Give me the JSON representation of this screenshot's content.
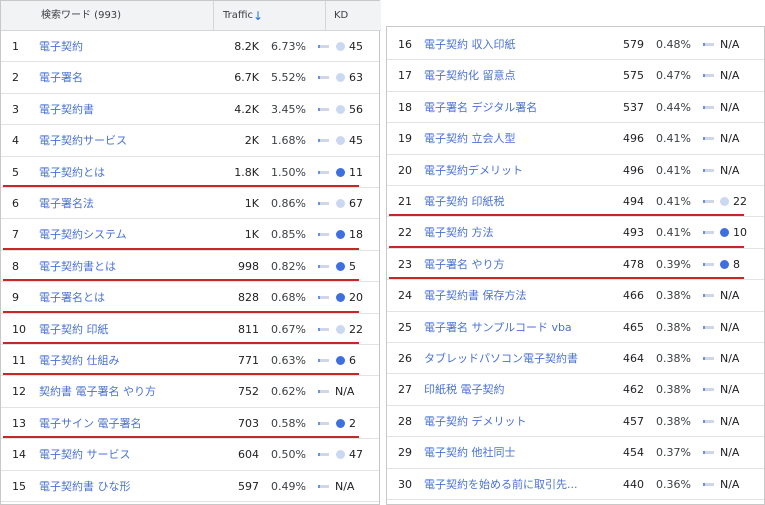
{
  "header": {
    "keyword_col": "検索ワード (993)",
    "traffic_col": "Traffic",
    "sort_icon": "arrow-down",
    "kd_col": "KD"
  },
  "colors": {
    "keyword_link": "#4a72d4",
    "kd_low": "#3e6fe0",
    "kd_high": "#cbd8f2",
    "underline": "#c62828"
  },
  "left_rows": [
    {
      "n": "1",
      "kw": "電子契約",
      "traffic": "8.2K",
      "pct": "6.73%",
      "kd": "45",
      "kd_level": "high",
      "underlined": false
    },
    {
      "n": "2",
      "kw": "電子署名",
      "traffic": "6.7K",
      "pct": "5.52%",
      "kd": "63",
      "kd_level": "high",
      "underlined": false
    },
    {
      "n": "3",
      "kw": "電子契約書",
      "traffic": "4.2K",
      "pct": "3.45%",
      "kd": "56",
      "kd_level": "high",
      "underlined": false
    },
    {
      "n": "4",
      "kw": "電子契約サービス",
      "traffic": "2K",
      "pct": "1.68%",
      "kd": "45",
      "kd_level": "high",
      "underlined": false
    },
    {
      "n": "5",
      "kw": "電子契約とは",
      "traffic": "1.8K",
      "pct": "1.50%",
      "kd": "11",
      "kd_level": "low",
      "underlined": true
    },
    {
      "n": "6",
      "kw": "電子署名法",
      "traffic": "1K",
      "pct": "0.86%",
      "kd": "67",
      "kd_level": "high",
      "underlined": false
    },
    {
      "n": "7",
      "kw": "電子契約システム",
      "traffic": "1K",
      "pct": "0.85%",
      "kd": "18",
      "kd_level": "low",
      "underlined": true
    },
    {
      "n": "8",
      "kw": "電子契約書とは",
      "traffic": "998",
      "pct": "0.82%",
      "kd": "5",
      "kd_level": "low",
      "underlined": true
    },
    {
      "n": "9",
      "kw": "電子署名とは",
      "traffic": "828",
      "pct": "0.68%",
      "kd": "20",
      "kd_level": "low",
      "underlined": true
    },
    {
      "n": "10",
      "kw": "電子契約 印紙",
      "traffic": "811",
      "pct": "0.67%",
      "kd": "22",
      "kd_level": "high",
      "underlined": true
    },
    {
      "n": "11",
      "kw": "電子契約 仕組み",
      "traffic": "771",
      "pct": "0.63%",
      "kd": "6",
      "kd_level": "low",
      "underlined": true
    },
    {
      "n": "12",
      "kw": "契約書 電子署名 やり方",
      "traffic": "752",
      "pct": "0.62%",
      "kd": "N/A",
      "kd_level": "none",
      "underlined": false
    },
    {
      "n": "13",
      "kw": "電子サイン 電子署名",
      "traffic": "703",
      "pct": "0.58%",
      "kd": "2",
      "kd_level": "low",
      "underlined": true
    },
    {
      "n": "14",
      "kw": "電子契約 サービス",
      "traffic": "604",
      "pct": "0.50%",
      "kd": "47",
      "kd_level": "high",
      "underlined": false
    },
    {
      "n": "15",
      "kw": "電子契約書 ひな形",
      "traffic": "597",
      "pct": "0.49%",
      "kd": "N/A",
      "kd_level": "none",
      "underlined": false
    }
  ],
  "right_rows": [
    {
      "n": "16",
      "kw": "電子契約 収入印紙",
      "traffic": "579",
      "pct": "0.48%",
      "kd": "N/A",
      "kd_level": "none",
      "underlined": false
    },
    {
      "n": "17",
      "kw": "電子契約化 留意点",
      "traffic": "575",
      "pct": "0.47%",
      "kd": "N/A",
      "kd_level": "none",
      "underlined": false
    },
    {
      "n": "18",
      "kw": "電子署名 デジタル署名",
      "traffic": "537",
      "pct": "0.44%",
      "kd": "N/A",
      "kd_level": "none",
      "underlined": false
    },
    {
      "n": "19",
      "kw": "電子契約 立会人型",
      "traffic": "496",
      "pct": "0.41%",
      "kd": "N/A",
      "kd_level": "none",
      "underlined": false
    },
    {
      "n": "20",
      "kw": "電子契約デメリット",
      "traffic": "496",
      "pct": "0.41%",
      "kd": "N/A",
      "kd_level": "none",
      "underlined": false
    },
    {
      "n": "21",
      "kw": "電子契約 印紙税",
      "traffic": "494",
      "pct": "0.41%",
      "kd": "22",
      "kd_level": "high",
      "underlined": true
    },
    {
      "n": "22",
      "kw": "電子契約 方法",
      "traffic": "493",
      "pct": "0.41%",
      "kd": "10",
      "kd_level": "low",
      "underlined": true
    },
    {
      "n": "23",
      "kw": "電子署名 やり方",
      "traffic": "478",
      "pct": "0.39%",
      "kd": "8",
      "kd_level": "low",
      "underlined": true
    },
    {
      "n": "24",
      "kw": "電子契約書 保存方法",
      "traffic": "466",
      "pct": "0.38%",
      "kd": "N/A",
      "kd_level": "none",
      "underlined": false
    },
    {
      "n": "25",
      "kw": "電子署名 サンプルコード vba",
      "traffic": "465",
      "pct": "0.38%",
      "kd": "N/A",
      "kd_level": "none",
      "underlined": false
    },
    {
      "n": "26",
      "kw": "タブレッドパソコン電子契約書",
      "traffic": "464",
      "pct": "0.38%",
      "kd": "N/A",
      "kd_level": "none",
      "underlined": false
    },
    {
      "n": "27",
      "kw": "印紙税 電子契約",
      "traffic": "462",
      "pct": "0.38%",
      "kd": "N/A",
      "kd_level": "none",
      "underlined": false
    },
    {
      "n": "28",
      "kw": "電子契約 デメリット",
      "traffic": "457",
      "pct": "0.38%",
      "kd": "N/A",
      "kd_level": "none",
      "underlined": false
    },
    {
      "n": "29",
      "kw": "電子契約 他社同士",
      "traffic": "454",
      "pct": "0.37%",
      "kd": "N/A",
      "kd_level": "none",
      "underlined": false
    },
    {
      "n": "30",
      "kw": "電子契約を始める前に取引先...",
      "traffic": "440",
      "pct": "0.36%",
      "kd": "N/A",
      "kd_level": "none",
      "underlined": false
    }
  ]
}
